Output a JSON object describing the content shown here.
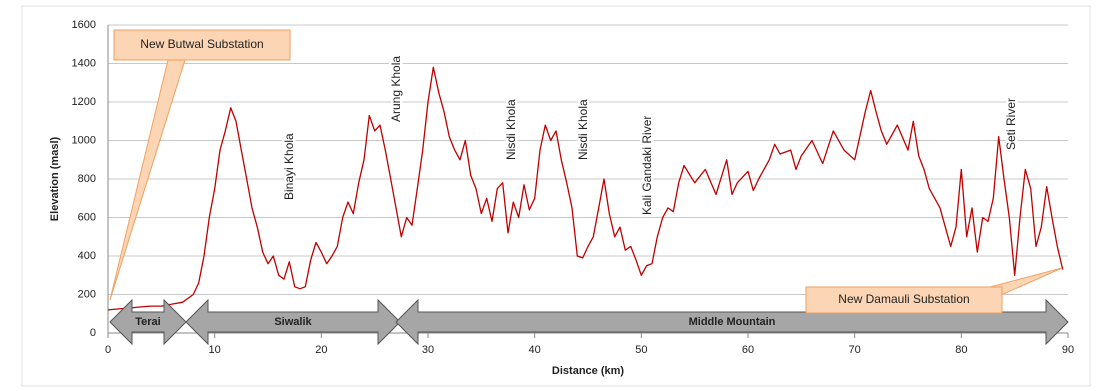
{
  "chart_data": {
    "type": "line",
    "y_label": "Elevation (masl)",
    "x_label": "Distance (km)",
    "annotations": [
      "Binayi Khola",
      "Arung Khola",
      "Nisdi Khola",
      "Nisdi Khola",
      "Kali Gandaki River",
      "Seti River"
    ],
    "callouts": [
      "New Butwal Substation",
      "New Damauli Substation"
    ],
    "zones": [
      "Terai",
      "Siwalik",
      "Middle Mountain"
    ],
    "color": "#c00000",
    "grid": true,
    "xlim": [
      0,
      90
    ],
    "xticks": [
      0,
      10,
      20,
      30,
      40,
      50,
      60,
      70,
      80,
      90
    ],
    "ylim": [
      0,
      1600
    ],
    "yticks": [
      0,
      200,
      400,
      600,
      800,
      1000,
      1200,
      1400,
      1600
    ],
    "x": [
      0,
      1,
      2,
      3,
      4,
      5,
      6,
      7,
      8,
      8.5,
      9,
      9.5,
      10,
      10.5,
      11,
      11.5,
      12,
      12.5,
      13,
      13.5,
      14,
      14.5,
      15,
      15.5,
      16,
      16.5,
      17,
      17.5,
      18,
      18.5,
      19,
      19.5,
      20,
      20.5,
      21,
      21.5,
      22,
      22.5,
      23,
      23.5,
      24,
      24.5,
      25,
      25.5,
      26,
      26.5,
      27,
      27.5,
      28,
      28.5,
      29,
      29.5,
      30,
      30.5,
      31,
      31.5,
      32,
      32.5,
      33,
      33.5,
      34,
      34.5,
      35,
      35.5,
      36,
      36.5,
      37,
      37.5,
      38,
      38.5,
      39,
      39.5,
      40,
      40.5,
      41,
      41.5,
      42,
      42.5,
      43,
      43.5,
      44,
      44.5,
      45,
      45.5,
      46,
      46.5,
      47,
      47.5,
      48,
      48.5,
      49,
      49.5,
      50,
      50.5,
      51,
      51.5,
      52,
      52.5,
      53,
      53.5,
      54,
      55,
      56,
      57,
      58,
      58.5,
      59,
      60,
      60.5,
      61,
      62,
      62.5,
      63,
      64,
      64.5,
      65,
      66,
      67,
      68,
      69,
      70,
      71,
      71.5,
      72,
      72.5,
      73,
      74,
      75,
      75.5,
      76,
      76.5,
      77,
      78,
      79,
      79.5,
      80,
      80.5,
      81,
      81.5,
      82,
      82.5,
      83,
      83.5,
      84,
      84.5,
      85,
      85.5,
      86,
      86.5,
      87,
      87.5,
      88,
      88.5,
      89,
      89.5
    ],
    "values": [
      120,
      125,
      130,
      135,
      140,
      140,
      150,
      160,
      200,
      260,
      400,
      600,
      750,
      950,
      1050,
      1170,
      1100,
      950,
      800,
      650,
      550,
      420,
      360,
      400,
      300,
      280,
      370,
      240,
      230,
      240,
      380,
      470,
      420,
      360,
      400,
      450,
      600,
      680,
      620,
      780,
      900,
      1130,
      1050,
      1080,
      950,
      800,
      650,
      500,
      600,
      560,
      750,
      950,
      1200,
      1380,
      1250,
      1150,
      1020,
      950,
      900,
      1000,
      820,
      750,
      620,
      700,
      580,
      750,
      780,
      520,
      680,
      600,
      770,
      640,
      700,
      950,
      1080,
      1000,
      1050,
      900,
      780,
      650,
      400,
      390,
      450,
      500,
      650,
      800,
      620,
      500,
      550,
      430,
      450,
      380,
      300,
      350,
      360,
      500,
      600,
      650,
      630,
      780,
      870,
      780,
      850,
      720,
      900,
      720,
      780,
      840,
      740,
      800,
      900,
      980,
      930,
      950,
      850,
      920,
      1000,
      880,
      1050,
      950,
      900,
      1150,
      1260,
      1150,
      1050,
      980,
      1080,
      950,
      1100,
      920,
      850,
      750,
      650,
      450,
      550,
      850,
      500,
      650,
      420,
      600,
      580,
      700,
      1020,
      800,
      600,
      300,
      600,
      850,
      750,
      450,
      550,
      760,
      600,
      450,
      330
    ]
  }
}
